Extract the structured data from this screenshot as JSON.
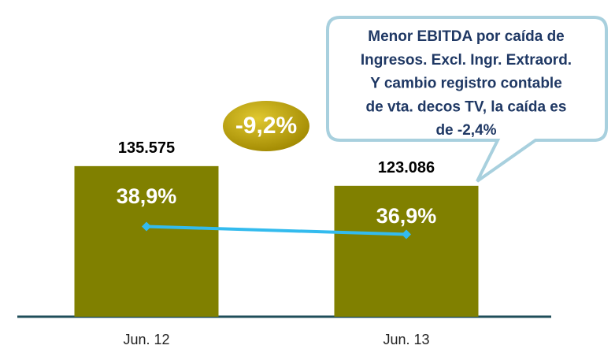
{
  "chart_data": {
    "type": "bar_line",
    "categories": [
      "Jun. 12",
      "Jun. 13"
    ],
    "series": [
      {
        "type": "bar",
        "color": "#808000",
        "values": [
          135575,
          123086
        ],
        "value_labels": [
          "135.575",
          "123.086"
        ]
      },
      {
        "type": "line",
        "axis": "y2",
        "color": "#33bbee",
        "values": [
          38.9,
          36.9
        ],
        "value_labels": [
          "38,9%",
          "36,9%"
        ]
      }
    ],
    "ylim": [
      40000,
      150000
    ],
    "y2lim": [
      16,
      60
    ],
    "annotations": [
      "-9,2%"
    ],
    "callout": [
      "Menor EBITDA por caída de",
      "Ingresos. Excl. Ingr. Extraord.",
      "Y cambio registro contable",
      "de vta. decos TV, la caída es",
      "de -2,4%"
    ]
  }
}
